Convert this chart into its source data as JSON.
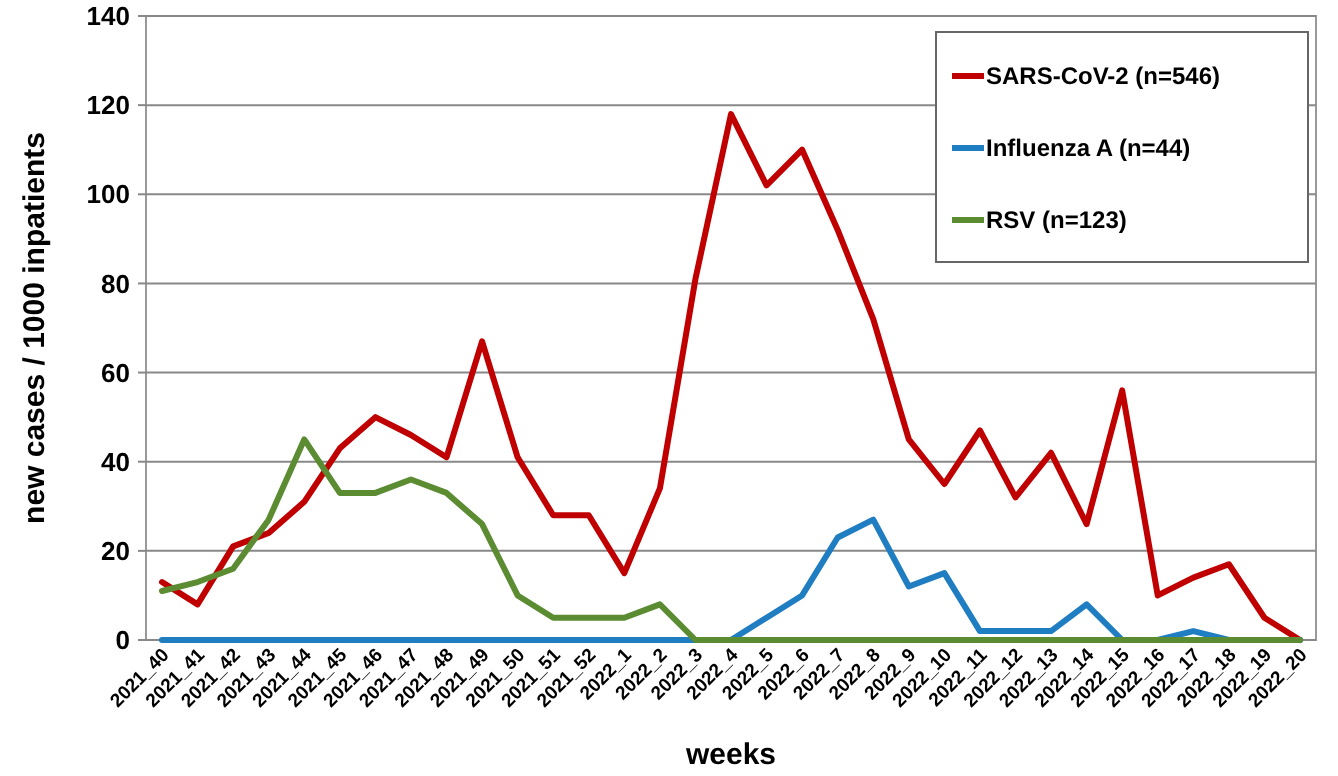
{
  "chart_data": {
    "type": "line",
    "xlabel": "weeks",
    "ylabel": "new cases / 1000 inpatients",
    "categories": [
      "2021_40",
      "2021_41",
      "2021_42",
      "2021_43",
      "2021_44",
      "2021_45",
      "2021_46",
      "2021_47",
      "2021_48",
      "2021_49",
      "2021_50",
      "2021_51",
      "2021_52",
      "2022_1",
      "2022_2",
      "2022_3",
      "2022_4",
      "2022_5",
      "2022_6",
      "2022_7",
      "2022_8",
      "2022_9",
      "2022_10",
      "2022_11",
      "2022_12",
      "2022_13",
      "2022_14",
      "2022_15",
      "2022_16",
      "2022_17",
      "2022_18",
      "2022_19",
      "2022_20"
    ],
    "series": [
      {
        "name": "SARS-CoV-2 (n=546)",
        "color": "#c00000",
        "values": [
          13,
          8,
          21,
          24,
          31,
          43,
          50,
          46,
          41,
          67,
          41,
          28,
          28,
          15,
          34,
          81,
          118,
          102,
          110,
          92,
          72,
          45,
          35,
          47,
          32,
          42,
          26,
          56,
          10,
          14,
          17,
          5,
          0
        ]
      },
      {
        "name": "Influenza A (n=44)",
        "color": "#1f7dc2",
        "values": [
          0,
          0,
          0,
          0,
          0,
          0,
          0,
          0,
          0,
          0,
          0,
          0,
          0,
          0,
          0,
          0,
          0,
          5,
          10,
          23,
          27,
          12,
          15,
          2,
          2,
          2,
          8,
          0,
          0,
          2,
          0,
          0,
          0
        ]
      },
      {
        "name": "RSV (n=123)",
        "color": "#5b8c32",
        "values": [
          11,
          13,
          16,
          27,
          45,
          33,
          33,
          36,
          33,
          26,
          10,
          5,
          5,
          5,
          8,
          0,
          0,
          0,
          0,
          0,
          0,
          0,
          0,
          0,
          0,
          0,
          0,
          0,
          0,
          0,
          0,
          0,
          0
        ]
      }
    ],
    "ylim": [
      0,
      140
    ],
    "yticks": [
      0,
      20,
      40,
      60,
      80,
      100,
      120,
      140
    ],
    "grid": "y",
    "legend": "top right",
    "marker": "none",
    "line_style": "solid"
  }
}
